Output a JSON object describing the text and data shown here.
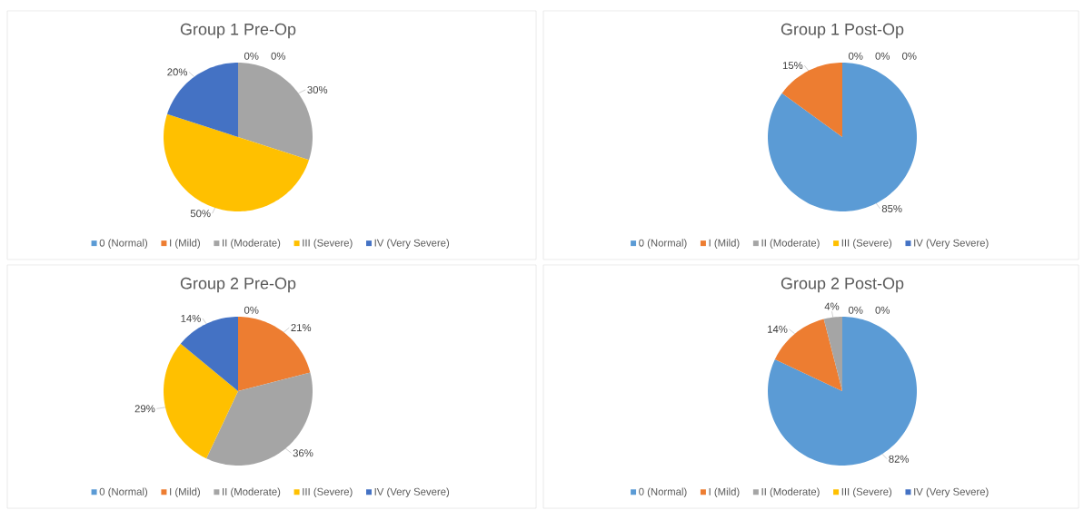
{
  "chart_data": [
    {
      "type": "pie",
      "title": "Group 1 Pre-Op",
      "categories": [
        "0 (Normal)",
        "I (Mild)",
        "II (Moderate)",
        "III (Severe)",
        "IV (Very Severe)"
      ],
      "values": [
        0,
        0,
        30,
        50,
        20
      ],
      "value_labels": [
        "0%",
        "0%",
        "30%",
        "50%",
        "20%"
      ],
      "colors": [
        "#5b9bd5",
        "#ed7d31",
        "#a5a5a5",
        "#ffc000",
        "#4472c4"
      ],
      "legend": "bottom"
    },
    {
      "type": "pie",
      "title": "Group 1 Post-Op",
      "categories": [
        "0 (Normal)",
        "I (Mild)",
        "II (Moderate)",
        "III (Severe)",
        "IV (Very Severe)"
      ],
      "values": [
        85,
        15,
        0,
        0,
        0
      ],
      "value_labels": [
        "85%",
        "15%",
        "0%",
        "0%",
        "0%"
      ],
      "colors": [
        "#5b9bd5",
        "#ed7d31",
        "#a5a5a5",
        "#ffc000",
        "#4472c4"
      ],
      "legend": "bottom"
    },
    {
      "type": "pie",
      "title": "Group 2 Pre-Op",
      "categories": [
        "0 (Normal)",
        "I (Mild)",
        "II (Moderate)",
        "III (Severe)",
        "IV (Very Severe)"
      ],
      "values": [
        0,
        21,
        36,
        29,
        14
      ],
      "value_labels": [
        "0%",
        "21%",
        "36%",
        "29%",
        "14%"
      ],
      "colors": [
        "#5b9bd5",
        "#ed7d31",
        "#a5a5a5",
        "#ffc000",
        "#4472c4"
      ],
      "legend": "bottom"
    },
    {
      "type": "pie",
      "title": "Group 2 Post-Op",
      "categories": [
        "0 (Normal)",
        "I (Mild)",
        "II (Moderate)",
        "III (Severe)",
        "IV (Very Severe)"
      ],
      "values": [
        82,
        14,
        4,
        0,
        0
      ],
      "value_labels": [
        "82%",
        "14%",
        "4%",
        "0%",
        "0%"
      ],
      "colors": [
        "#5b9bd5",
        "#ed7d31",
        "#a5a5a5",
        "#ffc000",
        "#4472c4"
      ],
      "legend": "bottom"
    }
  ]
}
